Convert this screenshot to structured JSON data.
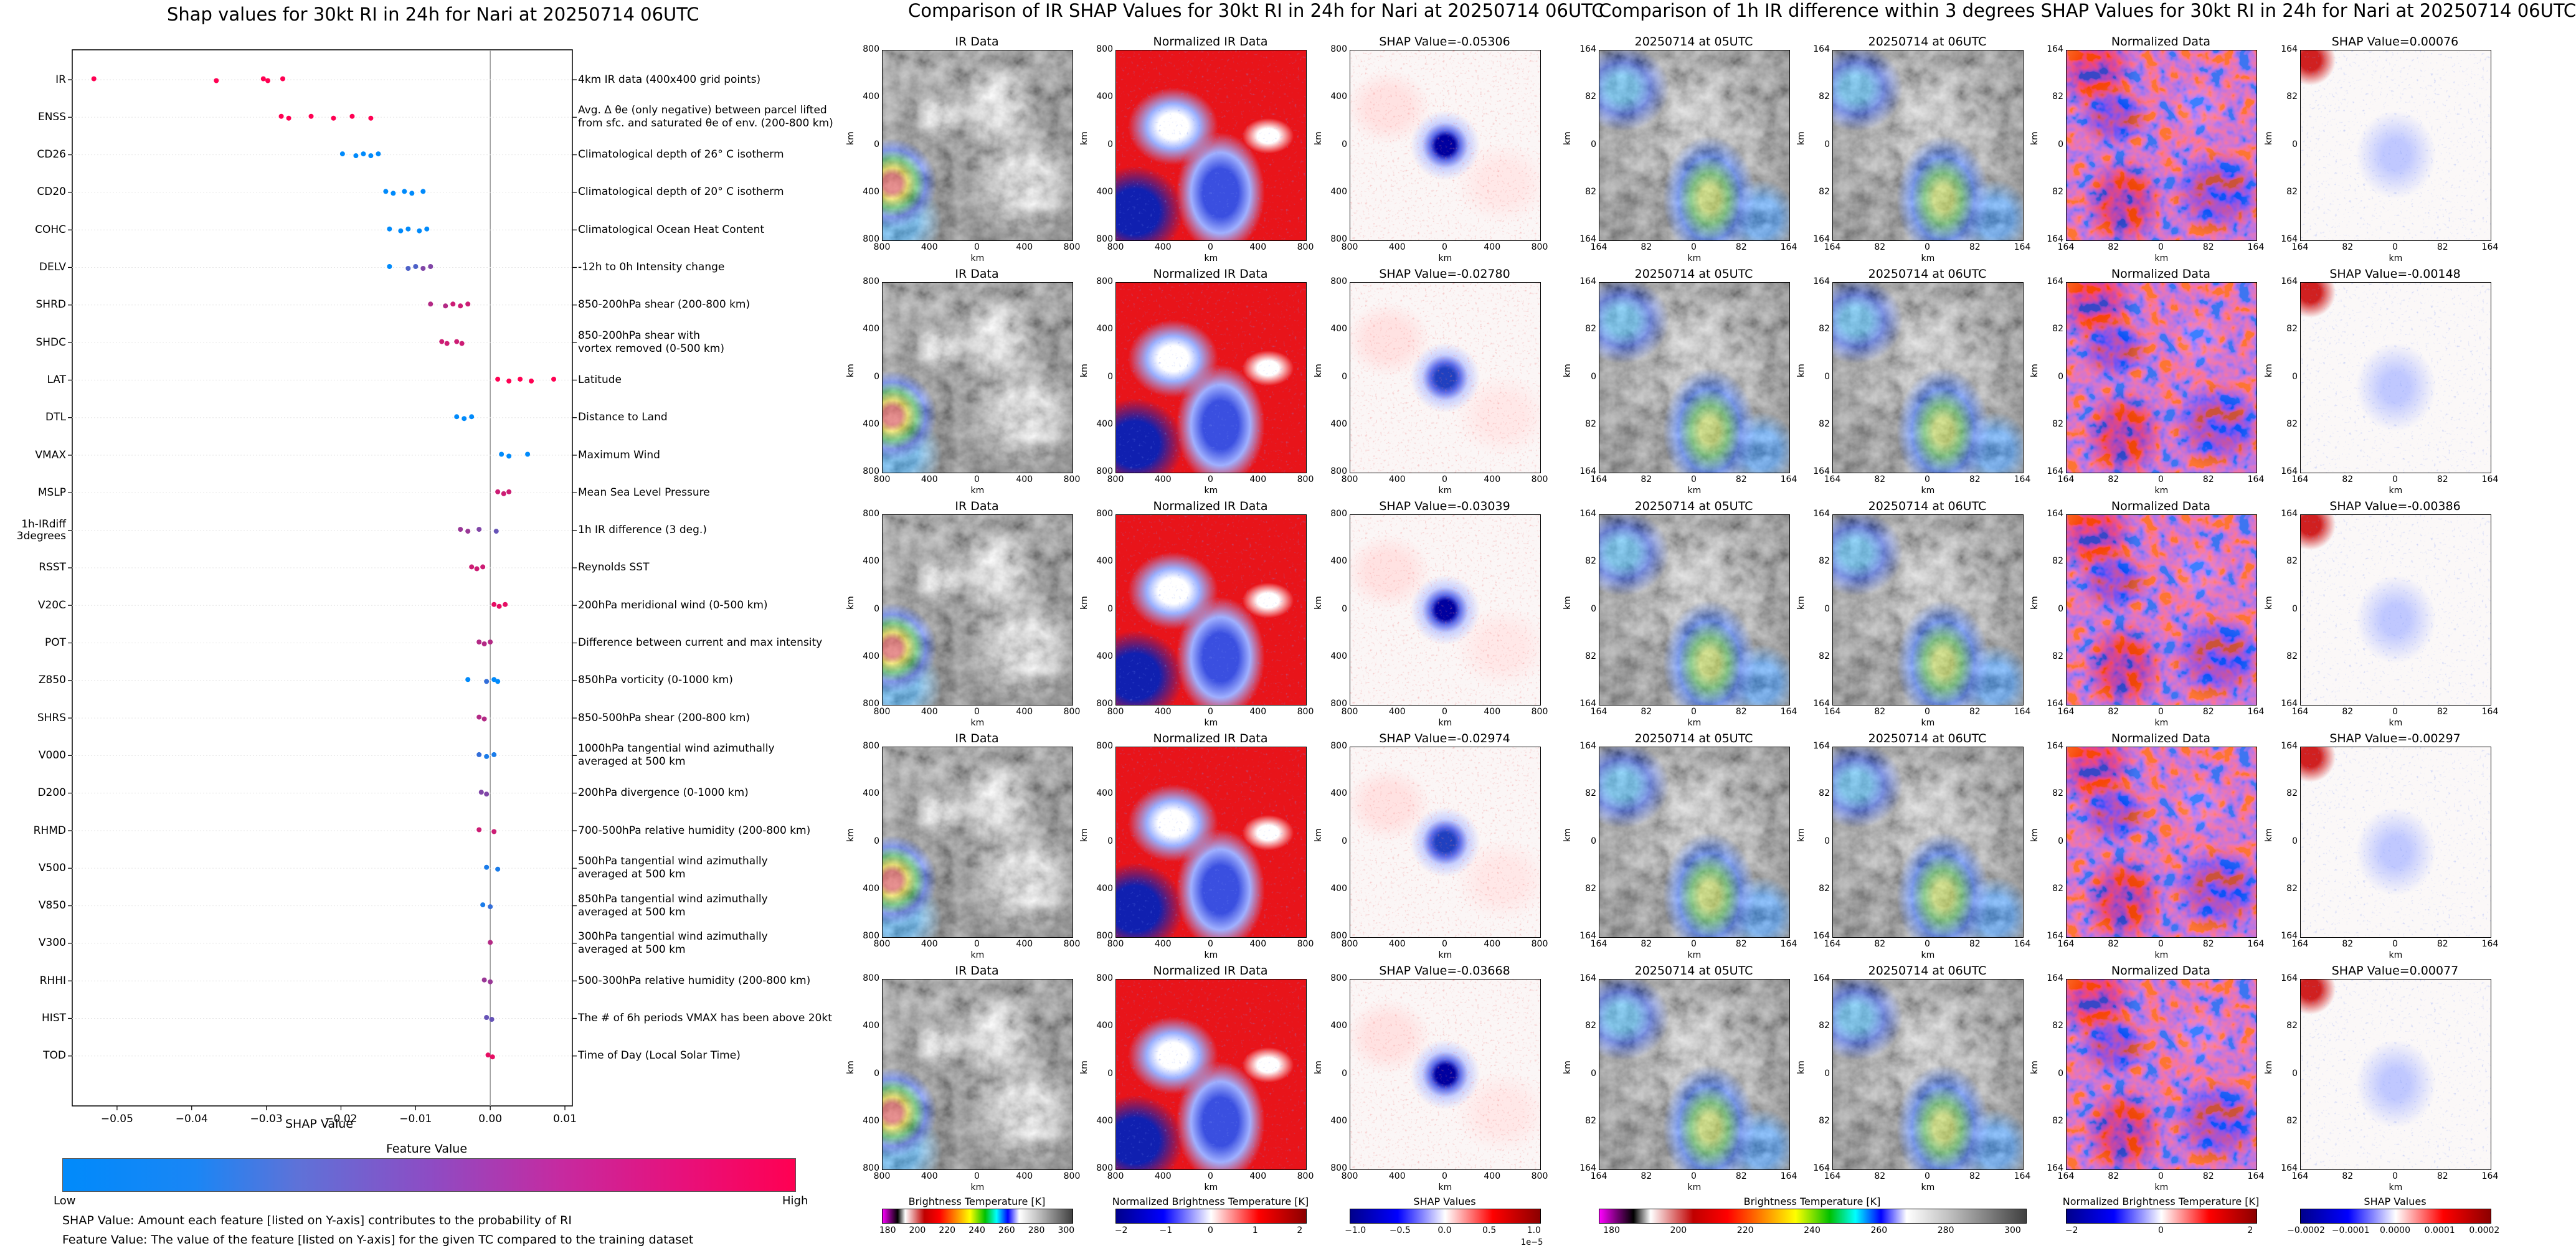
{
  "shap_panel": {
    "title": "Shap values for 30kt RI in 24h for Nari at 20250714 06UTC",
    "xlabel": "SHAP Value",
    "colorbar_title": "Feature Value",
    "low_label": "Low",
    "high_label": "High",
    "note1": "SHAP Value: Amount each feature [listed on Y-axis] contributes to the probability of RI",
    "note2": "Feature Value: The value of the feature [listed on Y-axis] for the given TC compared to the training dataset"
  },
  "ir_section": {
    "title": "Comparison of IR SHAP Values for 30kt RI in 24h for Nari at 20250714 06UTC",
    "col_titles": [
      "IR Data",
      "Normalized IR Data"
    ],
    "shap_titles": [
      "SHAP Value=-0.05306",
      "SHAP Value=-0.02780",
      "SHAP Value=-0.03039",
      "SHAP Value=-0.02974",
      "SHAP Value=-0.03668"
    ],
    "axis_label": "km",
    "ticks_x": [
      "800",
      "400",
      "0",
      "400",
      "800"
    ],
    "ticks_y": [
      "800",
      "400",
      "0",
      "400",
      "800"
    ]
  },
  "diff_section": {
    "title": "Comparison of 1h IR difference within 3 degrees SHAP Values for 30kt RI in 24h for Nari at 20250714 06UTC",
    "col_titles": [
      "20250714 at 05UTC",
      "20250714 at 06UTC",
      "Normalized Data"
    ],
    "shap_titles": [
      "SHAP Value=0.00076",
      "SHAP Value=-0.00148",
      "SHAP Value=-0.00386",
      "SHAP Value=-0.00297",
      "SHAP Value=0.00077"
    ],
    "axis_label": "km",
    "ticks_x": [
      "164",
      "82",
      "0",
      "82",
      "164"
    ],
    "ticks_y": [
      "164",
      "82",
      "0",
      "82",
      "164"
    ]
  },
  "colorbars": [
    {
      "title": "Brightness Temperature [K]",
      "ticks": [
        "180",
        "200",
        "220",
        "240",
        "260",
        "280",
        "300"
      ],
      "offset": ""
    },
    {
      "title": "Normalized Brightness Temperature [K]",
      "ticks": [
        "−2",
        "−1",
        "0",
        "1",
        "2"
      ],
      "offset": ""
    },
    {
      "title": "SHAP Values",
      "ticks": [
        "−1.0",
        "−0.5",
        "0.0",
        "0.5",
        "1.0"
      ],
      "offset": "1e−5"
    },
    {
      "title": "Brightness Temperature [K]",
      "ticks": [
        "180",
        "200",
        "220",
        "240",
        "260",
        "280",
        "300"
      ],
      "offset": ""
    },
    {
      "title": "Normalized Brightness Temperature [K]",
      "ticks": [
        "−2",
        "0",
        "2"
      ],
      "offset": ""
    },
    {
      "title": "SHAP Values",
      "ticks": [
        "−0.0002",
        "−0.0001",
        "0.0000",
        "0.0001",
        "0.0002"
      ],
      "offset": ""
    }
  ],
  "chart_data": {
    "type": "scatter",
    "title": "Shap values for 30kt RI in 24h for Nari at 20250714 06UTC",
    "xlabel": "SHAP Value",
    "ylabel": "",
    "xlim": [
      -0.056,
      0.011
    ],
    "xticks": [
      -0.05,
      -0.04,
      -0.03,
      -0.02,
      -0.01,
      0.0,
      0.01
    ],
    "xtick_labels": [
      "−0.05",
      "−0.04",
      "−0.03",
      "−0.02",
      "−0.01",
      "0.00",
      "0.01"
    ],
    "color_scale": {
      "low": "#008afb",
      "high": "#ff0052"
    },
    "features": [
      {
        "code": "IR",
        "label": "4km IR data (400x400 grid points)",
        "points": [
          [
            -0.0531,
            1
          ],
          [
            -0.0367,
            1
          ],
          [
            -0.0304,
            1
          ],
          [
            -0.0298,
            1
          ],
          [
            -0.0278,
            1
          ]
        ]
      },
      {
        "code": "ENSS",
        "label": "Avg. Δ θe (only negative) between parcel lifted\nfrom sfc. and saturated θe of env. (200-800 km)",
        "points": [
          [
            -0.028,
            1
          ],
          [
            -0.027,
            1
          ],
          [
            -0.024,
            1
          ],
          [
            -0.021,
            1
          ],
          [
            -0.0185,
            1
          ],
          [
            -0.016,
            1
          ]
        ]
      },
      {
        "code": "CD26",
        "label": "Climatological depth of 26° C isotherm",
        "points": [
          [
            -0.0198,
            0
          ],
          [
            -0.018,
            0
          ],
          [
            -0.017,
            0
          ],
          [
            -0.016,
            0
          ],
          [
            -0.015,
            0
          ]
        ]
      },
      {
        "code": "CD20",
        "label": "Climatological depth of 20° C isotherm",
        "points": [
          [
            -0.014,
            0
          ],
          [
            -0.013,
            0
          ],
          [
            -0.0115,
            0
          ],
          [
            -0.0105,
            0
          ],
          [
            -0.009,
            0
          ]
        ]
      },
      {
        "code": "COHC",
        "label": "Climatological Ocean Heat Content",
        "points": [
          [
            -0.0135,
            0
          ],
          [
            -0.012,
            0
          ],
          [
            -0.011,
            0
          ],
          [
            -0.0095,
            0
          ],
          [
            -0.0085,
            0
          ]
        ]
      },
      {
        "code": "DELV",
        "label": "-12h to 0h Intensity change",
        "points": [
          [
            -0.0135,
            0
          ],
          [
            -0.011,
            0.3
          ],
          [
            -0.01,
            0.3
          ],
          [
            -0.009,
            0.5
          ],
          [
            -0.008,
            0.5
          ]
        ]
      },
      {
        "code": "SHRD",
        "label": "850-200hPa shear (200-800 km)",
        "points": [
          [
            -0.008,
            0.7
          ],
          [
            -0.006,
            0.7
          ],
          [
            -0.005,
            0.8
          ],
          [
            -0.004,
            0.8
          ],
          [
            -0.003,
            0.8
          ]
        ]
      },
      {
        "code": "SHDC",
        "label": "850-200hPa shear with\nvortex removed (0-500 km)",
        "points": [
          [
            -0.0065,
            0.8
          ],
          [
            -0.0058,
            0.8
          ],
          [
            -0.0045,
            0.8
          ],
          [
            -0.0038,
            0.8
          ]
        ]
      },
      {
        "code": "LAT",
        "label": "Latitude",
        "points": [
          [
            0.001,
            1
          ],
          [
            0.0025,
            1
          ],
          [
            0.004,
            1
          ],
          [
            0.0055,
            1
          ],
          [
            0.0085,
            1
          ]
        ]
      },
      {
        "code": "DTL",
        "label": "Distance to Land",
        "points": [
          [
            -0.0045,
            0
          ],
          [
            -0.0035,
            0
          ],
          [
            -0.0025,
            0
          ]
        ]
      },
      {
        "code": "VMAX",
        "label": "Maximum Wind",
        "points": [
          [
            0.0015,
            0
          ],
          [
            0.0025,
            0
          ],
          [
            0.005,
            0
          ]
        ]
      },
      {
        "code": "MSLP",
        "label": "Mean Sea Level Pressure",
        "points": [
          [
            0.001,
            0.8
          ],
          [
            0.0018,
            0.8
          ],
          [
            0.0025,
            0.8
          ]
        ]
      },
      {
        "code": "1h-IRdiff\n3degrees",
        "label": "1h IR difference (3 deg.)",
        "points": [
          [
            -0.004,
            0.6
          ],
          [
            -0.003,
            0.6
          ],
          [
            -0.0015,
            0.5
          ],
          [
            0.0008,
            0.4
          ]
        ]
      },
      {
        "code": "RSST",
        "label": "Reynolds SST",
        "points": [
          [
            -0.0025,
            0.8
          ],
          [
            -0.0018,
            0.8
          ],
          [
            -0.001,
            0.8
          ]
        ]
      },
      {
        "code": "V20C",
        "label": "200hPa meridional wind (0-500 km)",
        "points": [
          [
            0.0005,
            0.9
          ],
          [
            0.0012,
            0.9
          ],
          [
            0.002,
            0.9
          ]
        ]
      },
      {
        "code": "POT",
        "label": "Difference between current and max intensity",
        "points": [
          [
            -0.0015,
            0.7
          ],
          [
            -0.0008,
            0.7
          ],
          [
            0.0,
            0.7
          ]
        ]
      },
      {
        "code": "Z850",
        "label": "850hPa vorticity (0-1000 km)",
        "points": [
          [
            -0.003,
            0
          ],
          [
            -0.0005,
            0.2
          ],
          [
            0.0005,
            0
          ],
          [
            0.001,
            0
          ]
        ]
      },
      {
        "code": "SHRS",
        "label": "850-500hPa shear (200-800 km)",
        "points": [
          [
            -0.0015,
            0.7
          ],
          [
            -0.0008,
            0.7
          ]
        ]
      },
      {
        "code": "V000",
        "label": "1000hPa tangential wind azimuthally\naveraged at 500 km",
        "points": [
          [
            -0.0015,
            0.2
          ],
          [
            -0.0005,
            0.1
          ],
          [
            0.0005,
            0.1
          ]
        ]
      },
      {
        "code": "D200",
        "label": "200hPa divergence (0-1000 km)",
        "points": [
          [
            -0.0012,
            0.5
          ],
          [
            -0.0005,
            0.5
          ]
        ]
      },
      {
        "code": "RHMD",
        "label": "700-500hPa relative humidity (200-800 km)",
        "points": [
          [
            -0.0015,
            0.8
          ],
          [
            0.0005,
            0.8
          ]
        ]
      },
      {
        "code": "V500",
        "label": "500hPa tangential wind azimuthally\naveraged at 500 km",
        "points": [
          [
            -0.0005,
            0.1
          ],
          [
            0.001,
            0.1
          ]
        ]
      },
      {
        "code": "V850",
        "label": "850hPa tangential wind azimuthally\naveraged at 500 km",
        "points": [
          [
            -0.001,
            0.1
          ],
          [
            0.0,
            0.2
          ]
        ]
      },
      {
        "code": "V300",
        "label": "300hPa tangential wind azimuthally\naveraged at 500 km",
        "points": [
          [
            0.0,
            0.7
          ]
        ]
      },
      {
        "code": "RHHI",
        "label": "500-300hPa relative humidity (200-800 km)",
        "points": [
          [
            -0.0008,
            0.6
          ],
          [
            0.0,
            0.6
          ]
        ]
      },
      {
        "code": "HIST",
        "label": "The # of 6h periods VMAX has been above 20kt",
        "points": [
          [
            -0.0005,
            0.4
          ],
          [
            0.0002,
            0.4
          ]
        ]
      },
      {
        "code": "TOD",
        "label": "Time of Day (Local Solar Time)",
        "points": [
          [
            -0.0003,
            0.9
          ],
          [
            0.0003,
            0.9
          ]
        ]
      }
    ]
  }
}
